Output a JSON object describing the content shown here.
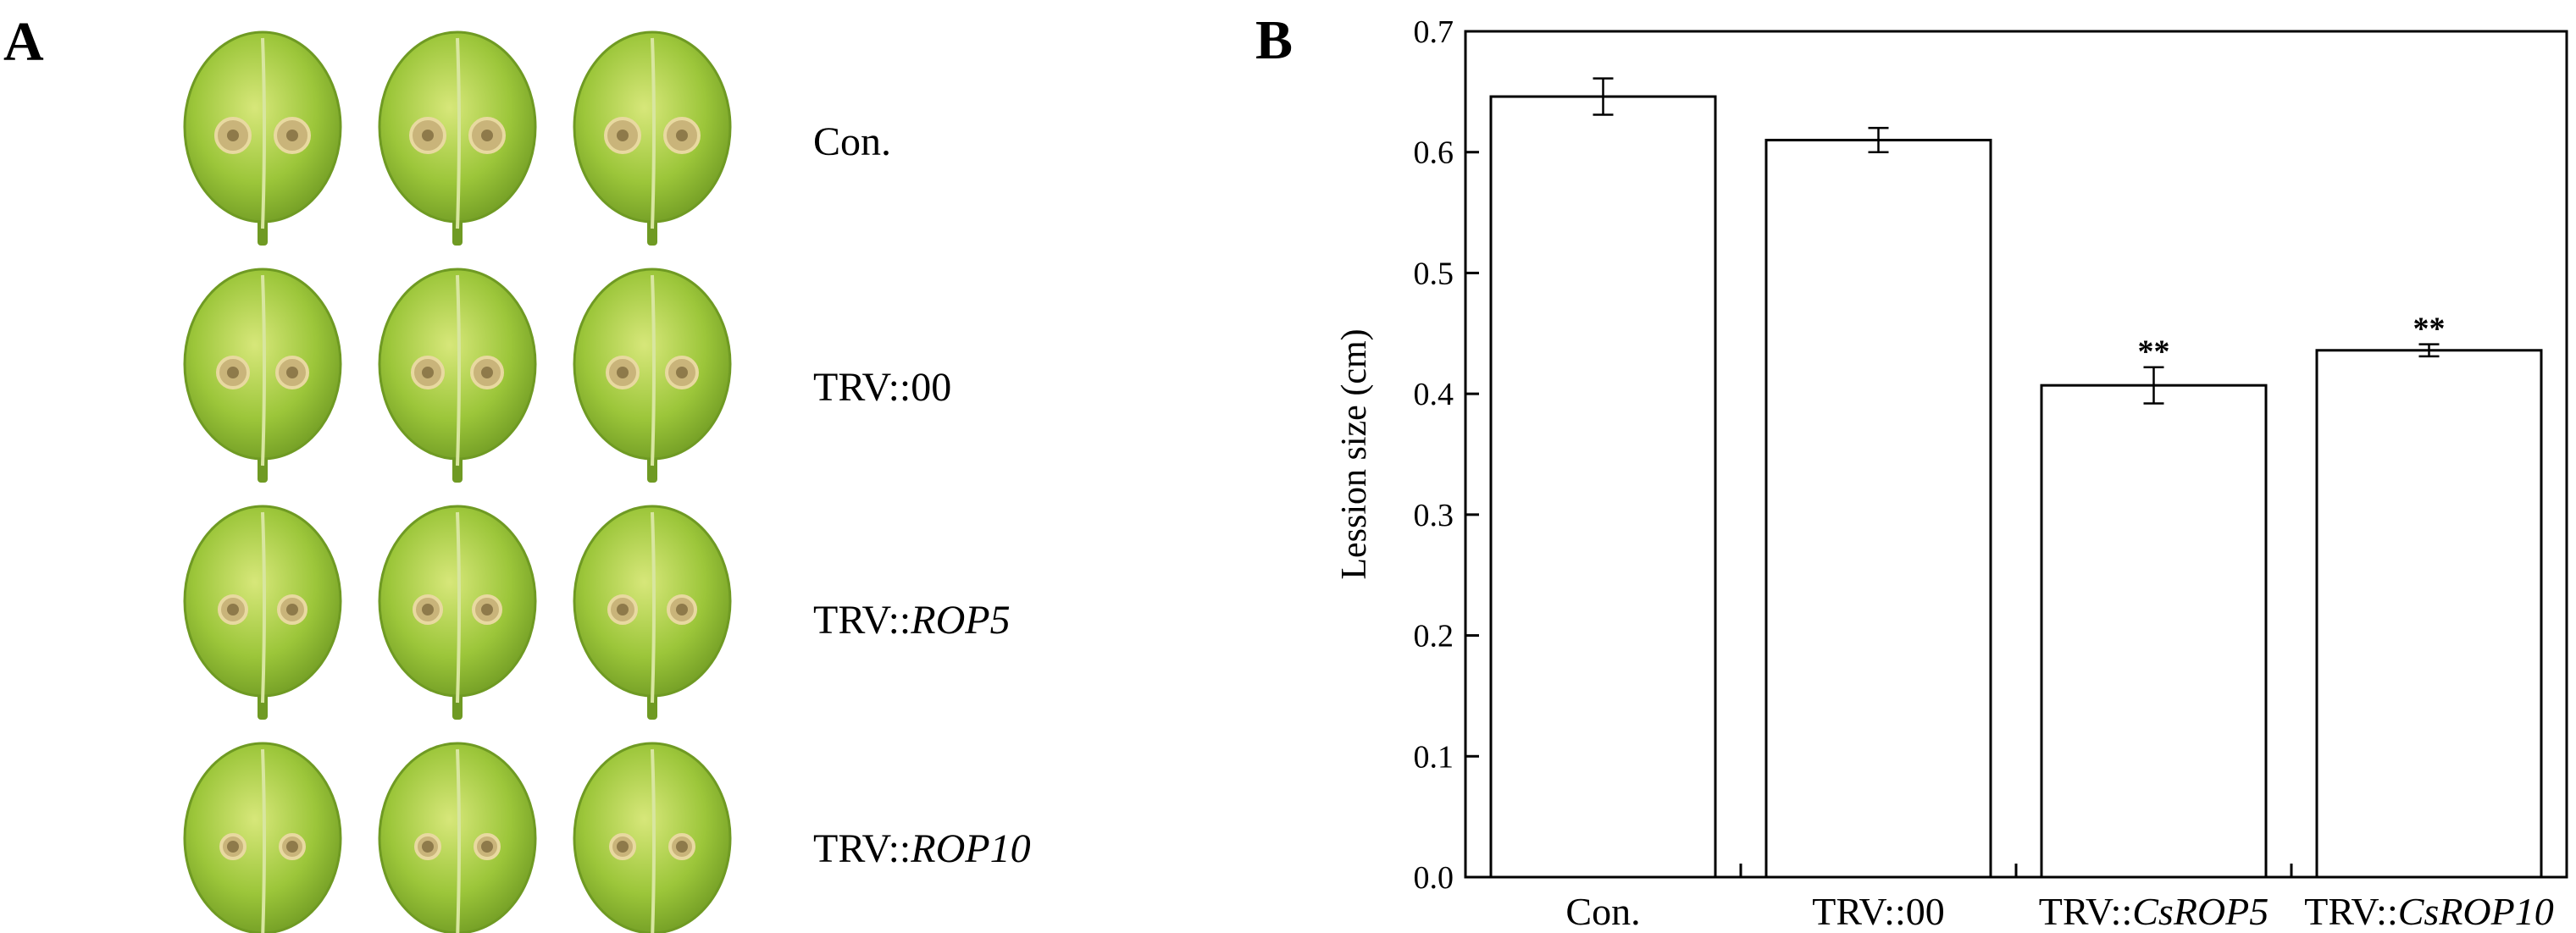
{
  "panel_a": {
    "letter": "A",
    "rows": [
      {
        "prefix": "Con.",
        "gene": ""
      },
      {
        "prefix": "TRV::00",
        "gene": ""
      },
      {
        "prefix": "TRV::",
        "gene": "ROP5"
      },
      {
        "prefix": "TRV::",
        "gene": "ROP10"
      }
    ],
    "colors": {
      "leaf": "#9cc63a",
      "leaf_edge": "#6f9a23",
      "lesion": "#c9b47a",
      "lesion_core": "#8e7a4a",
      "vein": "#d8e6a0"
    }
  },
  "panel_b": {
    "letter": "B",
    "chart_data": {
      "type": "bar",
      "categories": [
        {
          "prefix": "Con.",
          "gene": ""
        },
        {
          "prefix": "TRV::00",
          "gene": ""
        },
        {
          "prefix": "TRV::",
          "gene": "CsROP5"
        },
        {
          "prefix": "TRV::",
          "gene": "CsROP10"
        }
      ],
      "values": [
        0.646,
        0.61,
        0.407,
        0.436
      ],
      "errors": [
        0.015,
        0.01,
        0.015,
        0.005
      ],
      "significance": [
        "",
        "",
        "**",
        "**"
      ],
      "ylabel": "Lession size (cm)",
      "ylim": [
        0,
        0.7
      ],
      "yticks": [
        "0.0",
        "0.1",
        "0.2",
        "0.3",
        "0.4",
        "0.5",
        "0.6",
        "0.7"
      ],
      "grid": false,
      "bar_color": "#ffffff",
      "edge_color": "#000000"
    }
  }
}
